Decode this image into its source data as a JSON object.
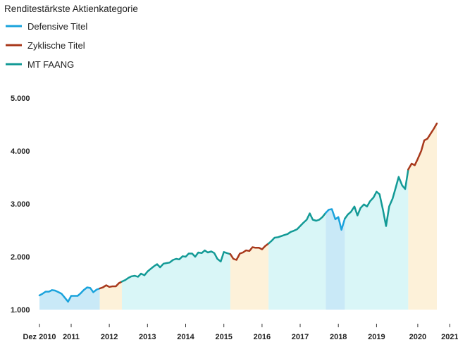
{
  "chart_data": {
    "type": "area",
    "title": "Renditestärkste Aktienkategorie",
    "legend": [
      {
        "label": "Defensive Titel",
        "color": "#1aa3dc"
      },
      {
        "label": "Zyklische Titel",
        "color": "#a8391c"
      },
      {
        "label": "MT FAANG",
        "color": "#139a96"
      }
    ],
    "ylim": [
      1000,
      5000
    ],
    "yticks": [
      1000,
      2000,
      3000,
      4000,
      5000
    ],
    "ytick_labels": [
      "1.000",
      "2.000",
      "3.000",
      "4.000",
      "5.000"
    ],
    "xlim": [
      2010.92,
      2021.33
    ],
    "xticks": [
      {
        "value": 2010.92,
        "label": "Dez 2010"
      },
      {
        "value": 2011.75,
        "label": "2011"
      },
      {
        "value": 2012.75,
        "label": "2012"
      },
      {
        "value": 2013.75,
        "label": "2013"
      },
      {
        "value": 2014.75,
        "label": "2014"
      },
      {
        "value": 2015.75,
        "label": "2015"
      },
      {
        "value": 2016.75,
        "label": "2016"
      },
      {
        "value": 2017.75,
        "label": "2017"
      },
      {
        "value": 2018.75,
        "label": "2018"
      },
      {
        "value": 2019.75,
        "label": "2019"
      },
      {
        "value": 2020.83,
        "label": "2020"
      },
      {
        "value": 2021.67,
        "label": "2021"
      }
    ],
    "regime_colors": {
      "defensive": {
        "line": "#1aa3dc",
        "fill": "#c9e9f7"
      },
      "cyclical": {
        "line": "#a8391c",
        "fill": "#fdf1d9"
      },
      "faang": {
        "line": "#139a96",
        "fill": "#d9f6f7"
      }
    },
    "segments": [
      {
        "regime": "defensive",
        "start": 2010.92,
        "end": 2012.5
      },
      {
        "regime": "cyclical",
        "start": 2012.5,
        "end": 2013.08
      },
      {
        "regime": "faang",
        "start": 2013.08,
        "end": 2015.92
      },
      {
        "regime": "cyclical",
        "start": 2015.92,
        "end": 2016.92
      },
      {
        "regime": "faang",
        "start": 2016.92,
        "end": 2018.42
      },
      {
        "regime": "defensive",
        "start": 2018.42,
        "end": 2018.92
      },
      {
        "regime": "faang",
        "start": 2018.92,
        "end": 2020.58
      },
      {
        "regime": "cyclical",
        "start": 2020.58,
        "end": 2021.33
      },
      {
        "regime": "faang",
        "start": 2021.33,
        "end": 2021.83
      },
      {
        "regime": "cyclical",
        "start": 2021.83,
        "end": 2022.33
      }
    ],
    "series": [
      {
        "name": "Index",
        "x": [
          2010.92,
          2011.0,
          2011.08,
          2011.17,
          2011.25,
          2011.33,
          2011.42,
          2011.5,
          2011.58,
          2011.67,
          2011.75,
          2011.83,
          2011.92,
          2012.0,
          2012.08,
          2012.17,
          2012.25,
          2012.33,
          2012.42,
          2012.5,
          2012.58,
          2012.67,
          2012.75,
          2012.83,
          2012.92,
          2013.0,
          2013.08,
          2013.17,
          2013.25,
          2013.33,
          2013.42,
          2013.5,
          2013.58,
          2013.67,
          2013.75,
          2013.83,
          2013.92,
          2014.0,
          2014.08,
          2014.17,
          2014.25,
          2014.33,
          2014.42,
          2014.5,
          2014.58,
          2014.67,
          2014.75,
          2014.83,
          2014.92,
          2015.0,
          2015.08,
          2015.17,
          2015.25,
          2015.33,
          2015.42,
          2015.5,
          2015.58,
          2015.67,
          2015.75,
          2015.83,
          2015.92,
          2016.0,
          2016.08,
          2016.17,
          2016.25,
          2016.33,
          2016.42,
          2016.5,
          2016.58,
          2016.67,
          2016.75,
          2016.83,
          2016.92,
          2017.0,
          2017.08,
          2017.17,
          2017.25,
          2017.33,
          2017.42,
          2017.5,
          2017.58,
          2017.67,
          2017.75,
          2017.83,
          2017.92,
          2018.0,
          2018.08,
          2018.17,
          2018.25,
          2018.33,
          2018.42,
          2018.5,
          2018.58,
          2018.67,
          2018.75,
          2018.83,
          2018.92,
          2019.0,
          2019.08,
          2019.17,
          2019.25,
          2019.33,
          2019.42,
          2019.5,
          2019.58,
          2019.67,
          2019.75,
          2019.83,
          2019.92,
          2020.0,
          2020.08,
          2020.17,
          2020.25,
          2020.33,
          2020.42,
          2020.5,
          2020.58,
          2020.67,
          2020.75,
          2020.83,
          2020.92,
          2021.0,
          2021.08,
          2021.17,
          2021.25,
          2021.33
        ],
        "values": [
          1270,
          1300,
          1340,
          1340,
          1370,
          1360,
          1330,
          1300,
          1230,
          1150,
          1260,
          1260,
          1260,
          1310,
          1370,
          1420,
          1410,
          1330,
          1380,
          1400,
          1420,
          1460,
          1430,
          1440,
          1440,
          1500,
          1530,
          1560,
          1600,
          1630,
          1640,
          1620,
          1680,
          1650,
          1720,
          1770,
          1820,
          1860,
          1800,
          1870,
          1880,
          1890,
          1940,
          1960,
          1950,
          2010,
          2000,
          2060,
          2060,
          2000,
          2080,
          2070,
          2120,
          2080,
          2100,
          2070,
          1960,
          1910,
          2090,
          2070,
          2050,
          1960,
          1940,
          2060,
          2080,
          2120,
          2110,
          2180,
          2170,
          2170,
          2140,
          2200,
          2250,
          2300,
          2360,
          2370,
          2390,
          2410,
          2430,
          2470,
          2490,
          2520,
          2580,
          2640,
          2700,
          2820,
          2700,
          2680,
          2700,
          2750,
          2830,
          2890,
          2900,
          2710,
          2750,
          2510,
          2720,
          2800,
          2850,
          2950,
          2780,
          2920,
          2990,
          2950,
          3050,
          3120,
          3230,
          3180,
          2880,
          2580,
          2950,
          3100,
          3300,
          3510,
          3350,
          3280,
          3650,
          3760,
          3730,
          3850,
          4000,
          4200,
          4230,
          4330,
          4420,
          4520
        ]
      }
    ]
  }
}
